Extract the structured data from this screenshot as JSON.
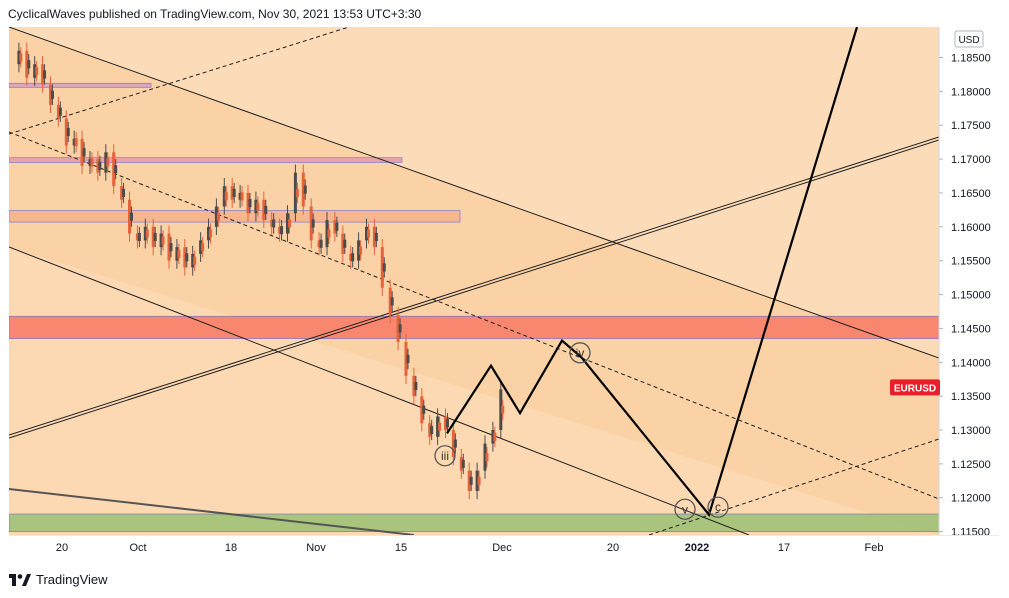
{
  "header": {
    "publisher": "CyclicalWaves published on TradingView.com, Nov 30, 2021 13:53 UTC+3:30"
  },
  "chart_data": {
    "type": "candlestick",
    "symbol": "EURUSD",
    "currency": "USD",
    "last_price_label": "EURUSD",
    "y_range": [
      1.1145,
      1.1895
    ],
    "y_ticks": [
      "1.18500",
      "1.18000",
      "1.17500",
      "1.17000",
      "1.16500",
      "1.16000",
      "1.15500",
      "1.15000",
      "1.14500",
      "1.14000",
      "1.13500",
      "1.13000",
      "1.12500",
      "1.12000",
      "1.11500"
    ],
    "x_ticks": [
      "20",
      "Oct",
      "18",
      "Nov",
      "15",
      "Dec",
      "20",
      "2022",
      "17",
      "Feb"
    ],
    "x_ticks_bold": [
      "2022"
    ],
    "price_path": [
      [
        0,
        1.184
      ],
      [
        2,
        1.186
      ],
      [
        4,
        1.182
      ],
      [
        6,
        1.184
      ],
      [
        8,
        1.181
      ],
      [
        10,
        1.178
      ],
      [
        12,
        1.176
      ],
      [
        14,
        1.172
      ],
      [
        16,
        1.173
      ],
      [
        18,
        1.169
      ],
      [
        20,
        1.17
      ],
      [
        22,
        1.168
      ],
      [
        24,
        1.171
      ],
      [
        26,
        1.166
      ],
      [
        28,
        1.164
      ],
      [
        30,
        1.159
      ],
      [
        32,
        1.158
      ],
      [
        34,
        1.16
      ],
      [
        36,
        1.157
      ],
      [
        38,
        1.159
      ],
      [
        40,
        1.155
      ],
      [
        42,
        1.157
      ],
      [
        44,
        1.154
      ],
      [
        46,
        1.156
      ],
      [
        48,
        1.158
      ],
      [
        50,
        1.16
      ],
      [
        52,
        1.163
      ],
      [
        54,
        1.166
      ],
      [
        56,
        1.164
      ],
      [
        58,
        1.165
      ],
      [
        60,
        1.162
      ],
      [
        62,
        1.164
      ],
      [
        64,
        1.161
      ],
      [
        66,
        1.16
      ],
      [
        68,
        1.159
      ],
      [
        70,
        1.162
      ],
      [
        72,
        1.168
      ],
      [
        74,
        1.163
      ],
      [
        76,
        1.158
      ],
      [
        78,
        1.157
      ],
      [
        80,
        1.161
      ],
      [
        82,
        1.159
      ],
      [
        84,
        1.156
      ],
      [
        86,
        1.155
      ],
      [
        88,
        1.158
      ],
      [
        90,
        1.16
      ],
      [
        92,
        1.157
      ],
      [
        94,
        1.151
      ],
      [
        96,
        1.147
      ],
      [
        98,
        1.143
      ],
      [
        100,
        1.138
      ],
      [
        102,
        1.135
      ],
      [
        104,
        1.131
      ],
      [
        106,
        1.129
      ],
      [
        108,
        1.132
      ],
      [
        110,
        1.13
      ],
      [
        112,
        1.126
      ],
      [
        114,
        1.124
      ],
      [
        116,
        1.121
      ],
      [
        118,
        1.124
      ],
      [
        120,
        1.128
      ],
      [
        122,
        1.13
      ],
      [
        124,
        1.136
      ]
    ],
    "wave_labels": [
      "iii",
      "iv",
      "v",
      "c"
    ],
    "projection_path": [
      [
        1.1295
      ],
      [
        1.1395
      ],
      [
        1.1325
      ],
      [
        1.1432
      ],
      [
        1.1408
      ],
      [
        1.1175
      ],
      [
        1.1895
      ]
    ],
    "zones": [
      {
        "name": "resistance-zone-red",
        "from": 1.1435,
        "to": 1.1468,
        "color": "#f9826c"
      },
      {
        "name": "resistance-zone-upper",
        "from": 1.1607,
        "to": 1.1624,
        "color": "#f7b58e"
      },
      {
        "name": "resistance-zone-top-thin",
        "from": 1.1695,
        "to": 1.1702,
        "color": "#e9a1a6"
      },
      {
        "name": "resistance-zone-top",
        "from": 1.1806,
        "to": 1.1812,
        "color": "#d8a6c0"
      },
      {
        "name": "support-zone-green",
        "from": 1.115,
        "to": 1.1176,
        "color": "#a5c37a"
      }
    ],
    "colors": {
      "background": "#fcdcb8",
      "channel_fill": "#fbd1a3",
      "candle_up": "#4b4b4b",
      "candle_down": "#e4633a",
      "label_bg": "#e91e2b",
      "projection": "#000000"
    },
    "grid": false
  },
  "footer": {
    "brand": "TradingView"
  }
}
